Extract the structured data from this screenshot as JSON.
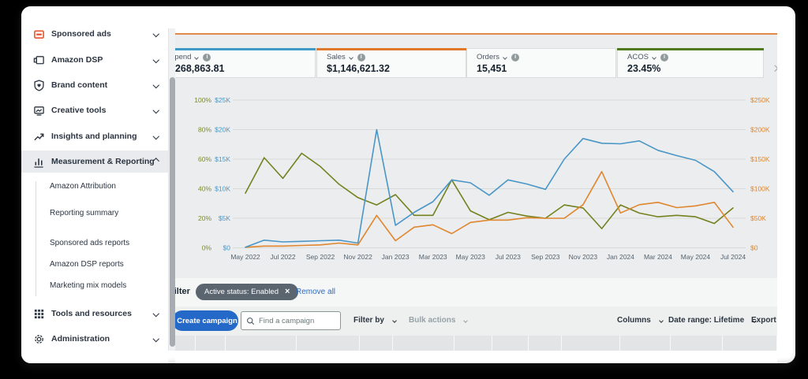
{
  "sidebar": {
    "items": [
      {
        "label": "Sponsored ads"
      },
      {
        "label": "Amazon DSP"
      },
      {
        "label": "Brand content"
      },
      {
        "label": "Creative tools"
      },
      {
        "label": "Insights and planning"
      },
      {
        "label": "Measurement & Reporting",
        "active": true
      },
      {
        "label": "Tools and resources"
      },
      {
        "label": "Administration"
      }
    ],
    "measurement_subitems": [
      "Amazon Attribution",
      "Reporting summary",
      "Sponsored ads reports",
      "Amazon DSP reports",
      "Marketing mix models"
    ]
  },
  "metrics": {
    "cards": [
      {
        "label": "Spend",
        "value": "$268,863.81",
        "accent": "#3e9ac9"
      },
      {
        "label": "Sales",
        "value": "$1,146,621.32",
        "accent": "#e0792c"
      },
      {
        "label": "Orders",
        "value": "15,451",
        "accent": ""
      },
      {
        "label": "ACOS",
        "value": "23.45%",
        "accent": "#4f7a1d"
      }
    ]
  },
  "chart_data": {
    "type": "line",
    "grid": true,
    "legend": false,
    "x": [
      "May 2022",
      "Jun 2022",
      "Jul 2022",
      "Aug 2022",
      "Sep 2022",
      "Oct 2022",
      "Nov 2022",
      "Dec 2022",
      "Jan 2023",
      "Feb 2023",
      "Mar 2023",
      "Apr 2023",
      "May 2023",
      "Jun 2023",
      "Jul 2023",
      "Aug 2023",
      "Sep 2023",
      "Oct 2023",
      "Nov 2023",
      "Dec 2023",
      "Jan 2024",
      "Feb 2024",
      "Mar 2024",
      "Apr 2024",
      "May 2024",
      "Jun 2024",
      "Jul 2024"
    ],
    "x_tick_labels": [
      "May 2022",
      "Jul 2022",
      "Sep 2022",
      "Nov 2022",
      "Jan 2023",
      "Mar 2023",
      "May 2023",
      "Jul 2023",
      "Sep 2023",
      "Nov 2023",
      "Jan 2024",
      "Mar 2024",
      "May 2024",
      "Jul 2024"
    ],
    "axes": {
      "left_pct": {
        "ticks": [
          "$0",
          "",
          ""
        ],
        "min": 0,
        "max": 100,
        "color": "#7d8a29",
        "tick_labels": [
          "0%",
          "20%",
          "40%",
          "60%",
          "80%",
          "100%"
        ]
      },
      "left_usd": {
        "ticks": [],
        "min": 0,
        "max": 25000,
        "color": "#4a96c6",
        "tick_labels": [
          "$0",
          "$5K",
          "$10K",
          "$15K",
          "$20K",
          "$25K"
        ]
      },
      "right_usd": {
        "ticks": [],
        "min": 0,
        "max": 250000,
        "color": "#e0862d",
        "tick_labels": [
          "$0",
          "$50K",
          "$100K",
          "$150K",
          "$200K",
          "$250K"
        ]
      }
    },
    "series": [
      {
        "name": "Spend",
        "axis": "left_usd",
        "color": "#4a96c6",
        "values": [
          100,
          1300,
          1000,
          1100,
          1200,
          1300,
          800,
          20000,
          3800,
          6000,
          7800,
          11500,
          11000,
          8900,
          11500,
          10800,
          9900,
          15000,
          18500,
          17700,
          17600,
          18100,
          16500,
          15600,
          14800,
          12900,
          9500
        ]
      },
      {
        "name": "Sales",
        "axis": "right_usd",
        "color": "#e0862d",
        "values": [
          1000,
          3000,
          3000,
          4000,
          5000,
          8000,
          5000,
          55000,
          12000,
          35000,
          39000,
          24000,
          43000,
          47000,
          47000,
          51000,
          50000,
          50000,
          73000,
          129000,
          59000,
          73000,
          77000,
          68000,
          71000,
          77000,
          35000
        ]
      },
      {
        "name": "ACOS",
        "axis": "left_pct",
        "color": "#75811f",
        "values": [
          37,
          61,
          47,
          64,
          55,
          43,
          34,
          29,
          36,
          22,
          22,
          46,
          25,
          19,
          24,
          21.5,
          20,
          29,
          27,
          13,
          29,
          23.5,
          21,
          22,
          21,
          16.5,
          27
        ]
      }
    ]
  },
  "filter_bar": {
    "label": "Filter",
    "chip": "Active status: Enabled",
    "remove_all": "Remove all"
  },
  "toolbar": {
    "create_campaign": "Create campaign",
    "search_placeholder": "Find a campaign",
    "filter_by": "Filter by",
    "bulk_actions": "Bulk actions",
    "columns": "Columns",
    "date_range": "Date range: Lifetime",
    "export": "Export"
  },
  "icons": {
    "close": "×"
  },
  "colors": {
    "accent_rule": "#e2884a",
    "primary_button": "#2569c8",
    "chip_bg": "#5b6570",
    "link": "#2d6bc4"
  }
}
